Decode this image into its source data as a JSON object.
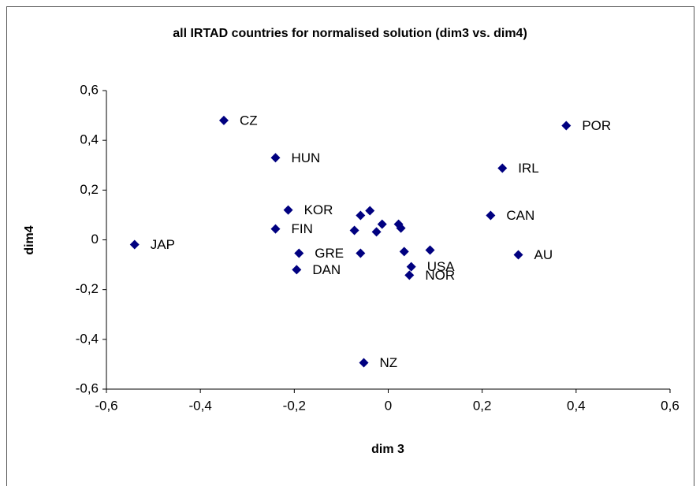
{
  "chart_data": {
    "type": "scatter",
    "title": "all IRTAD countries for normalised solution (dim3 vs. dim4)",
    "x_label": "dim 3",
    "y_label": "dim4",
    "color": "#000080",
    "x": [
      -0.35,
      -0.24,
      -0.213,
      -0.24,
      -0.54,
      -0.19,
      -0.195,
      -0.059,
      -0.039,
      -0.072,
      -0.025,
      -0.013,
      -0.059,
      0.022,
      0.027,
      0.034,
      0.089,
      0.049,
      0.045,
      -0.052,
      0.218,
      0.243,
      0.379,
      0.277
    ],
    "y": [
      0.48,
      0.33,
      0.12,
      0.044,
      -0.019,
      -0.054,
      -0.12,
      0.098,
      0.117,
      0.038,
      0.032,
      0.063,
      -0.054,
      0.063,
      0.047,
      -0.047,
      -0.041,
      -0.108,
      -0.142,
      -0.494,
      0.098,
      0.288,
      0.459,
      -0.06
    ],
    "labels": [
      "CZ",
      "HUN",
      "KOR",
      "FIN",
      "JAP",
      "GRE",
      "DAN",
      null,
      null,
      null,
      null,
      null,
      null,
      null,
      null,
      null,
      null,
      "USA",
      "NOR",
      "NZ",
      "CAN",
      "IRL",
      "POR",
      "AU"
    ],
    "xlim": [
      -0.6,
      0.6
    ],
    "ylim": [
      -0.6,
      0.6
    ],
    "xticks": [
      {
        "value": -0.6,
        "label": "-0,6"
      },
      {
        "value": -0.4,
        "label": "-0,4"
      },
      {
        "value": -0.2,
        "label": "-0,2"
      },
      0,
      {
        "value": 0.2,
        "label": "0,2"
      },
      {
        "value": 0.4,
        "label": "0,4"
      },
      {
        "value": 0.6,
        "label": "0,6"
      }
    ],
    "yticks": [
      {
        "value": -0.6,
        "label": "-0,6"
      },
      {
        "value": -0.4,
        "label": "-0,4"
      },
      {
        "value": -0.2,
        "label": "-0,2"
      },
      0,
      {
        "value": 0.2,
        "label": "0,2"
      },
      {
        "value": 0.4,
        "label": "0,4"
      },
      {
        "value": 0.6,
        "label": "0,6"
      }
    ],
    "grid": false
  }
}
